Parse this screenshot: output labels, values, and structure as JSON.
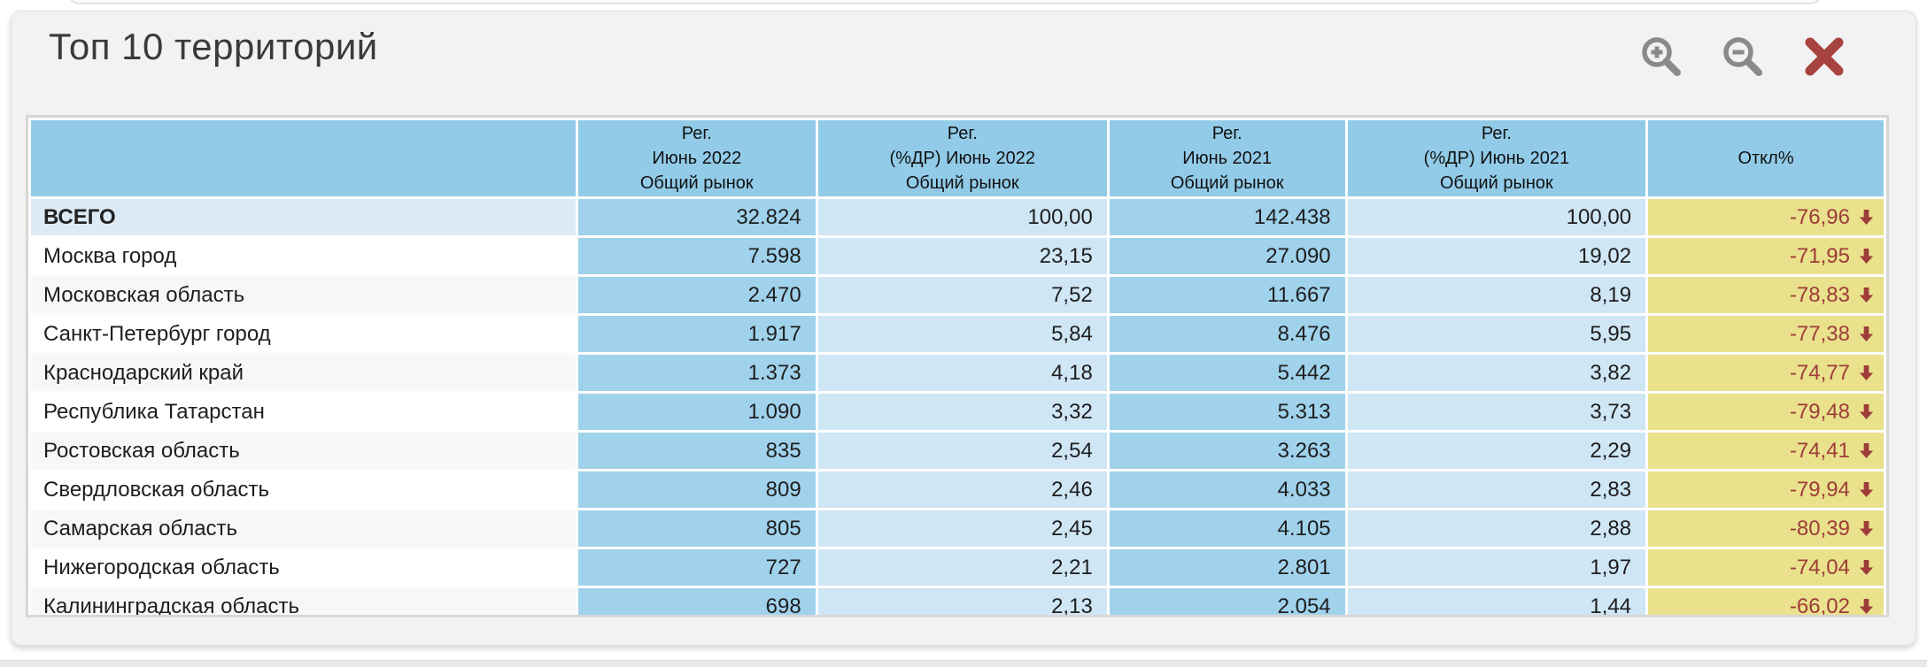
{
  "window": {
    "title": "Топ 10 территорий"
  },
  "toolbar": {
    "icons": [
      "zoom-in",
      "zoom-out",
      "close"
    ]
  },
  "colors": {
    "header_blue": "#92cbe8",
    "value_blue": "#a0d2ec",
    "pct_blue": "#cfe6f5",
    "total_row_blue": "#dceaf6",
    "deviation_yellow": "#e9e18c",
    "deviation_text": "#9e3c39",
    "close_red": "#a84440",
    "icon_gray": "#8a8a8a"
  },
  "table": {
    "columns": [
      {
        "lines": []
      },
      {
        "lines": [
          "Рег.",
          "Июнь 2022",
          "Общий рынок"
        ]
      },
      {
        "lines": [
          "Рег.",
          "(%ДР) Июнь 2022",
          "Общий рынок"
        ]
      },
      {
        "lines": [
          "Рег.",
          "Июнь 2021",
          "Общий рынок"
        ]
      },
      {
        "lines": [
          "Рег.",
          "(%ДР) Июнь 2021",
          "Общий рынок"
        ]
      },
      {
        "lines": [
          "Откл%"
        ]
      }
    ],
    "rows": [
      {
        "territory": "ВСЕГО",
        "total": true,
        "values": [
          "32.824",
          "100,00",
          "142.438",
          "100,00"
        ],
        "deviation": "-76,96",
        "trend": "down"
      },
      {
        "territory": "Москва город",
        "values": [
          "7.598",
          "23,15",
          "27.090",
          "19,02"
        ],
        "deviation": "-71,95",
        "trend": "down"
      },
      {
        "territory": "Московская область",
        "values": [
          "2.470",
          "7,52",
          "11.667",
          "8,19"
        ],
        "deviation": "-78,83",
        "trend": "down"
      },
      {
        "territory": "Санкт-Петербург город",
        "values": [
          "1.917",
          "5,84",
          "8.476",
          "5,95"
        ],
        "deviation": "-77,38",
        "trend": "down"
      },
      {
        "territory": "Краснодарский край",
        "values": [
          "1.373",
          "4,18",
          "5.442",
          "3,82"
        ],
        "deviation": "-74,77",
        "trend": "down"
      },
      {
        "territory": "Республика Татарстан",
        "values": [
          "1.090",
          "3,32",
          "5.313",
          "3,73"
        ],
        "deviation": "-79,48",
        "trend": "down"
      },
      {
        "territory": "Ростовская область",
        "values": [
          "835",
          "2,54",
          "3.263",
          "2,29"
        ],
        "deviation": "-74,41",
        "trend": "down"
      },
      {
        "territory": "Свердловская область",
        "values": [
          "809",
          "2,46",
          "4.033",
          "2,83"
        ],
        "deviation": "-79,94",
        "trend": "down"
      },
      {
        "territory": "Самарская область",
        "values": [
          "805",
          "2,45",
          "4.105",
          "2,88"
        ],
        "deviation": "-80,39",
        "trend": "down"
      },
      {
        "territory": "Нижегородская область",
        "values": [
          "727",
          "2,21",
          "2.801",
          "1,97"
        ],
        "deviation": "-74,04",
        "trend": "down"
      },
      {
        "territory": "Калининградская область",
        "values": [
          "698",
          "2,13",
          "2.054",
          "1,44"
        ],
        "deviation": "-66,02",
        "trend": "down"
      }
    ]
  }
}
